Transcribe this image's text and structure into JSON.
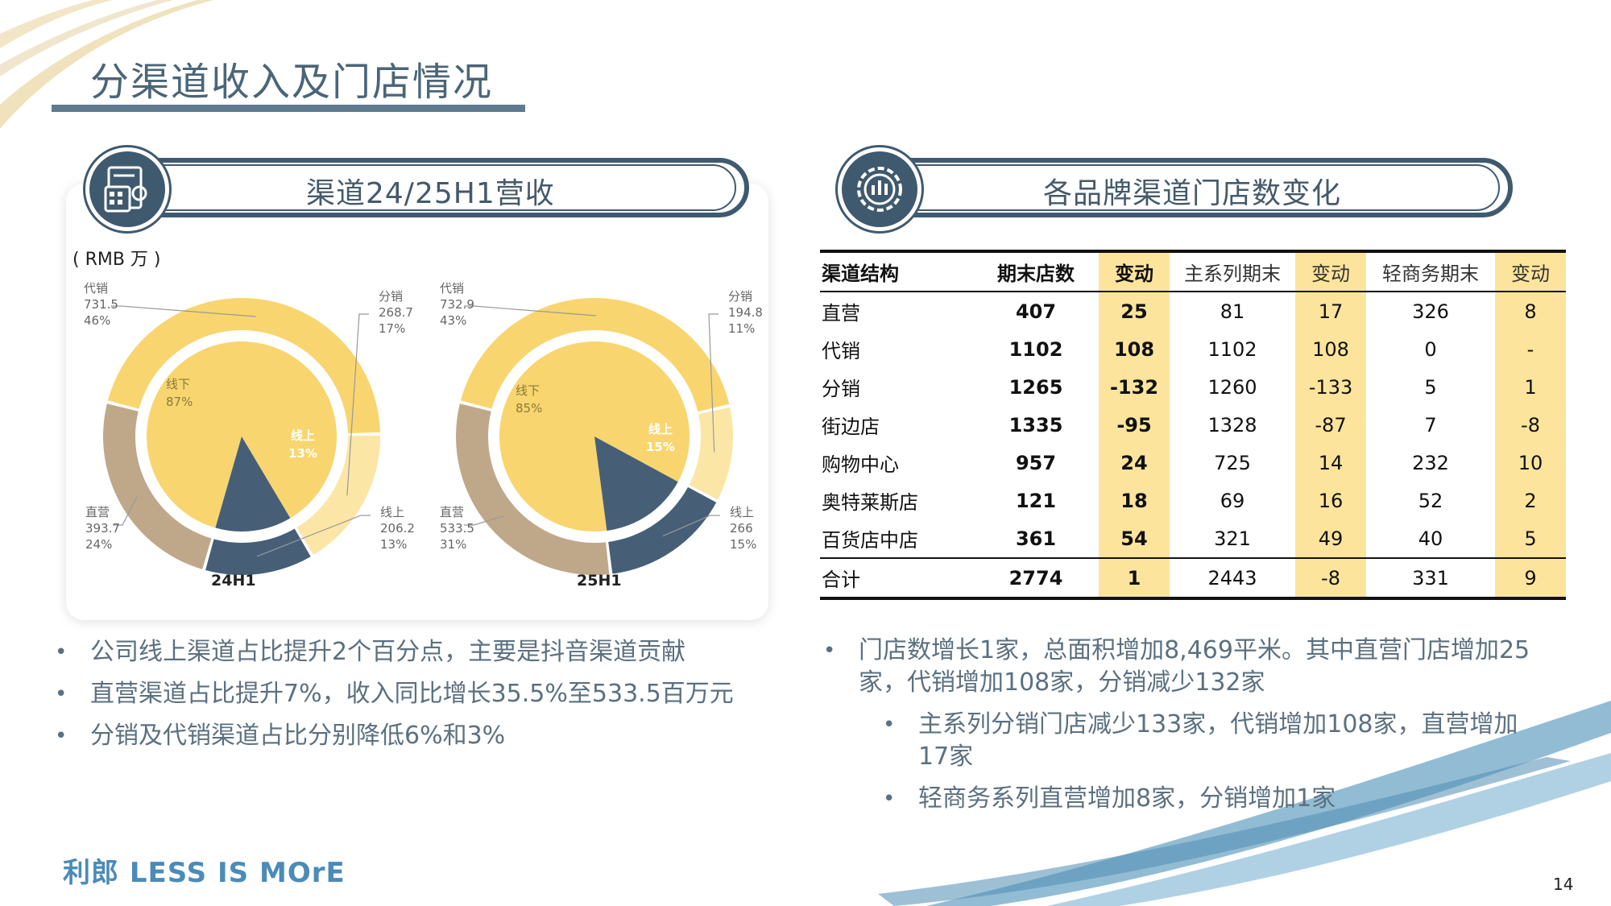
{
  "title": "分渠道收入及门店情况",
  "left_section": {
    "title": "渠道24/25H1营收",
    "unit": "( RMB 万 )",
    "icon": "calculator-document-icon"
  },
  "right_section": {
    "title": "各品牌渠道门店数变化",
    "icon": "gear-chart-icon"
  },
  "chart_data": [
    {
      "type": "pie",
      "title": "24H1",
      "inner": [
        {
          "label": "线下",
          "pct": "87%",
          "value": 87
        },
        {
          "label": "线上",
          "pct": "13%",
          "value": 13
        }
      ],
      "outer": [
        {
          "label": "代销",
          "value": 731.5,
          "pct": "46%",
          "value_text": "731.5"
        },
        {
          "label": "分销",
          "value": 268.7,
          "pct": "17%",
          "value_text": "268.7"
        },
        {
          "label": "线上",
          "value": 206.2,
          "pct": "13%",
          "value_text": "206.2"
        },
        {
          "label": "直营",
          "value": 393.7,
          "pct": "24%",
          "value_text": "393.7"
        }
      ]
    },
    {
      "type": "pie",
      "title": "25H1",
      "inner": [
        {
          "label": "线下",
          "pct": "85%",
          "value": 85
        },
        {
          "label": "线上",
          "pct": "15%",
          "value": 15
        }
      ],
      "outer": [
        {
          "label": "代销",
          "value": 732.9,
          "pct": "43%",
          "value_text": "732.9"
        },
        {
          "label": "分销",
          "value": 194.8,
          "pct": "11%",
          "value_text": "194.8"
        },
        {
          "label": "线上",
          "value": 266,
          "pct": "15%",
          "value_text": "266"
        },
        {
          "label": "直营",
          "value": 533.5,
          "pct": "31%",
          "value_text": "533.5"
        }
      ]
    }
  ],
  "colors": {
    "dai": "#f8d56f",
    "fen": "#fbe6a6",
    "online": "#465f77",
    "direct": "#bfa88a",
    "inner_offline": "#f8d56f",
    "accent": "#3f5a6f",
    "highlight": "#fde49c"
  },
  "table": {
    "headers": [
      "渠道结构",
      "期末店数",
      "变动",
      "主系列期末",
      "变动",
      "轻商务期末",
      "变动"
    ],
    "rows": [
      [
        "直营",
        "407",
        "25",
        "81",
        "17",
        "326",
        "8"
      ],
      [
        "代销",
        "1102",
        "108",
        "1102",
        "108",
        "0",
        "-"
      ],
      [
        "分销",
        "1265",
        "-132",
        "1260",
        "-133",
        "5",
        "1"
      ],
      [
        "街边店",
        "1335",
        "-95",
        "1328",
        "-87",
        "7",
        "-8"
      ],
      [
        "购物中心",
        "957",
        "24",
        "725",
        "14",
        "232",
        "10"
      ],
      [
        "奥特莱斯店",
        "121",
        "18",
        "69",
        "16",
        "52",
        "2"
      ],
      [
        "百货店中店",
        "361",
        "54",
        "321",
        "49",
        "40",
        "5"
      ]
    ],
    "total": [
      "合计",
      "2774",
      "1",
      "2443",
      "-8",
      "331",
      "9"
    ]
  },
  "left_bullets": [
    "公司线上渠道占比提升2个百分点，主要是抖音渠道贡献",
    "直营渠道占比提升7%，收入同比增长35.5%至533.5百万元",
    "分销及代销渠道占比分别降低6%和3%"
  ],
  "right_bullets": [
    "门店数增长1家，总面积增加8,469平米。其中直营门店增加25家，代销增加108家，分销减少132家",
    "主系列分销门店减少133家，代销增加108家，直营增加17家",
    "轻商务系列直营增加8家，分销增加1家"
  ],
  "footer": {
    "logo": "利郎 LESS IS MOrE",
    "page_number": "14"
  }
}
